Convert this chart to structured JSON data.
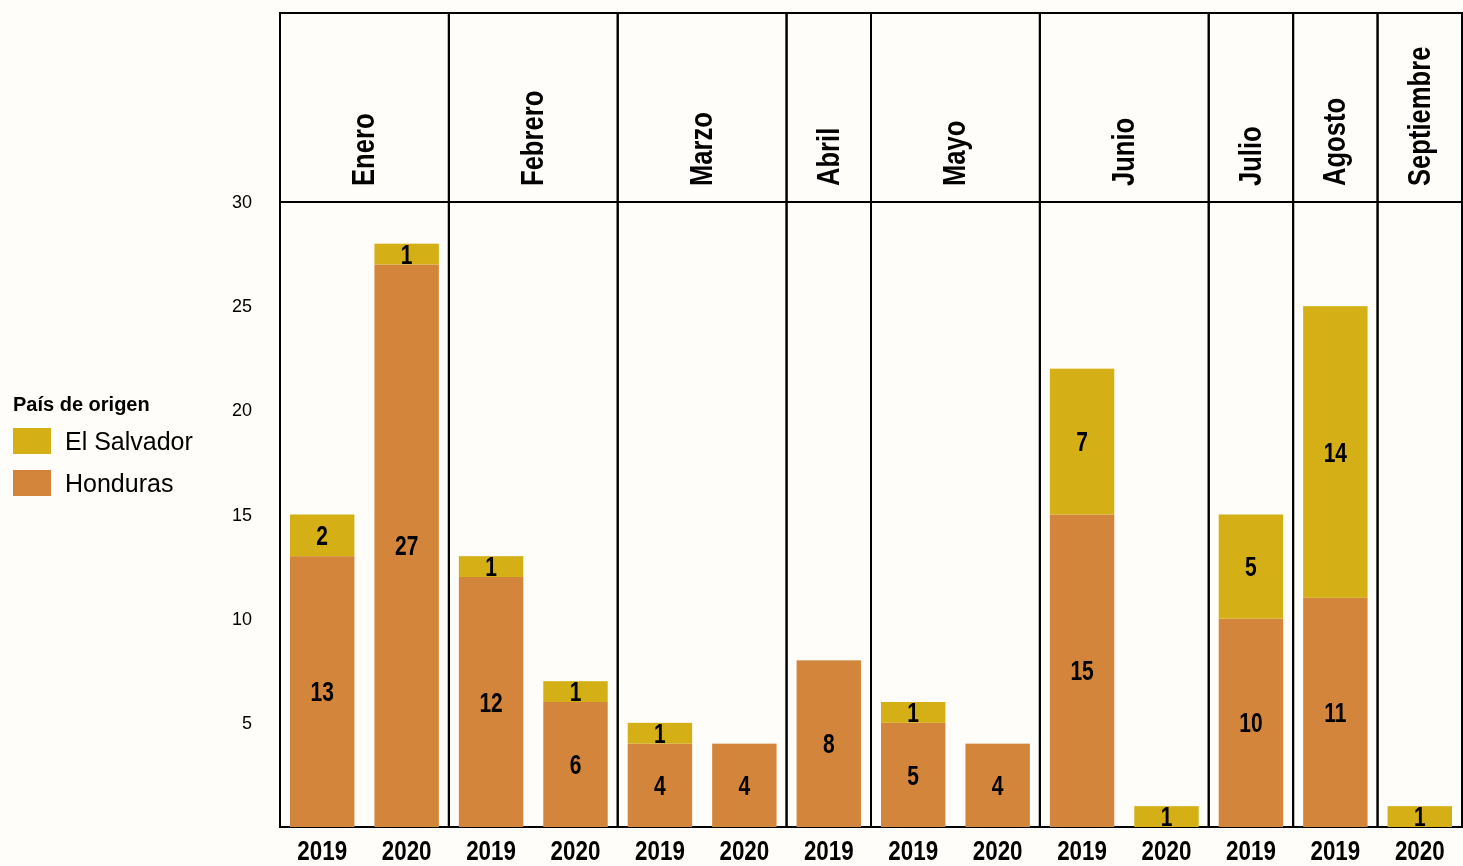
{
  "chart_data": [
    {
      "type": "bar",
      "title": "Enero",
      "categories": [
        "2019",
        "2020"
      ],
      "stacked": true,
      "data_labels": true,
      "ylim": [
        0,
        30
      ],
      "yticks": [
        5,
        10,
        15,
        20,
        25,
        30
      ],
      "legend": "left",
      "legend_title": "País de origen",
      "series": [
        {
          "name": "Honduras",
          "color": "#d4853c",
          "values": [
            13,
            27
          ]
        },
        {
          "name": "El Salvador",
          "color": "#d4b016",
          "values": [
            2,
            1
          ]
        }
      ]
    },
    {
      "type": "bar",
      "title": "Febrero",
      "categories": [
        "2019",
        "2020"
      ],
      "stacked": true,
      "data_labels": true,
      "ylim": [
        0,
        30
      ],
      "tick_labels": "x",
      "series": [
        {
          "color": "#d4853c",
          "values": [
            12,
            6
          ]
        },
        {
          "color": "#d4b016",
          "values": [
            1,
            1
          ]
        }
      ]
    },
    {
      "type": "bar",
      "title": "Marzo",
      "categories": [
        "2019",
        "2020"
      ],
      "stacked": true,
      "data_labels": true,
      "ylim": [
        0,
        30
      ],
      "tick_labels": "x",
      "series": [
        {
          "color": "#d4853c",
          "values": [
            4,
            4
          ]
        },
        {
          "color": "#d4b016",
          "values": [
            1,
            null
          ]
        }
      ]
    },
    {
      "type": "bar",
      "title": "Abril",
      "categories": [
        "2019"
      ],
      "stacked": true,
      "data_labels": true,
      "ylim": [
        0,
        30
      ],
      "tick_labels": "x",
      "series": [
        {
          "color": "#d4853c",
          "values": [
            8
          ]
        }
      ]
    },
    {
      "type": "bar",
      "title": "Mayo",
      "categories": [
        "2019",
        "2020"
      ],
      "stacked": true,
      "data_labels": true,
      "ylim": [
        0,
        30
      ],
      "tick_labels": "x",
      "series": [
        {
          "color": "#d4853c",
          "values": [
            5,
            4
          ]
        },
        {
          "color": "#d4b016",
          "values": [
            1,
            null
          ]
        }
      ]
    },
    {
      "type": "bar",
      "title": "Junio",
      "categories": [
        "2019",
        "2020"
      ],
      "stacked": true,
      "data_labels": true,
      "ylim": [
        0,
        30
      ],
      "tick_labels": "x",
      "series": [
        {
          "color": "#d4853c",
          "values": [
            15,
            null
          ]
        },
        {
          "color": "#d4b016",
          "values": [
            7,
            1
          ]
        }
      ]
    },
    {
      "type": "bar",
      "title": "Julio",
      "categories": [
        "2019"
      ],
      "stacked": true,
      "data_labels": true,
      "ylim": [
        0,
        30
      ],
      "tick_labels": "x",
      "series": [
        {
          "color": "#d4853c",
          "values": [
            10
          ]
        },
        {
          "color": "#d4b016",
          "values": [
            5
          ]
        }
      ]
    },
    {
      "type": "bar",
      "title": "Agosto",
      "categories": [
        "2019"
      ],
      "stacked": true,
      "data_labels": true,
      "ylim": [
        0,
        30
      ],
      "tick_labels": "x",
      "series": [
        {
          "color": "#d4853c",
          "values": [
            11
          ]
        },
        {
          "color": "#d4b016",
          "values": [
            14
          ]
        }
      ]
    },
    {
      "type": "bar",
      "title": "Septiembre",
      "categories": [
        "2020"
      ],
      "stacked": true,
      "data_labels": true,
      "ylim": [
        0,
        30
      ],
      "tick_labels": "x",
      "series": [
        {
          "color": "#d4b016",
          "values": [
            1
          ]
        }
      ]
    }
  ]
}
